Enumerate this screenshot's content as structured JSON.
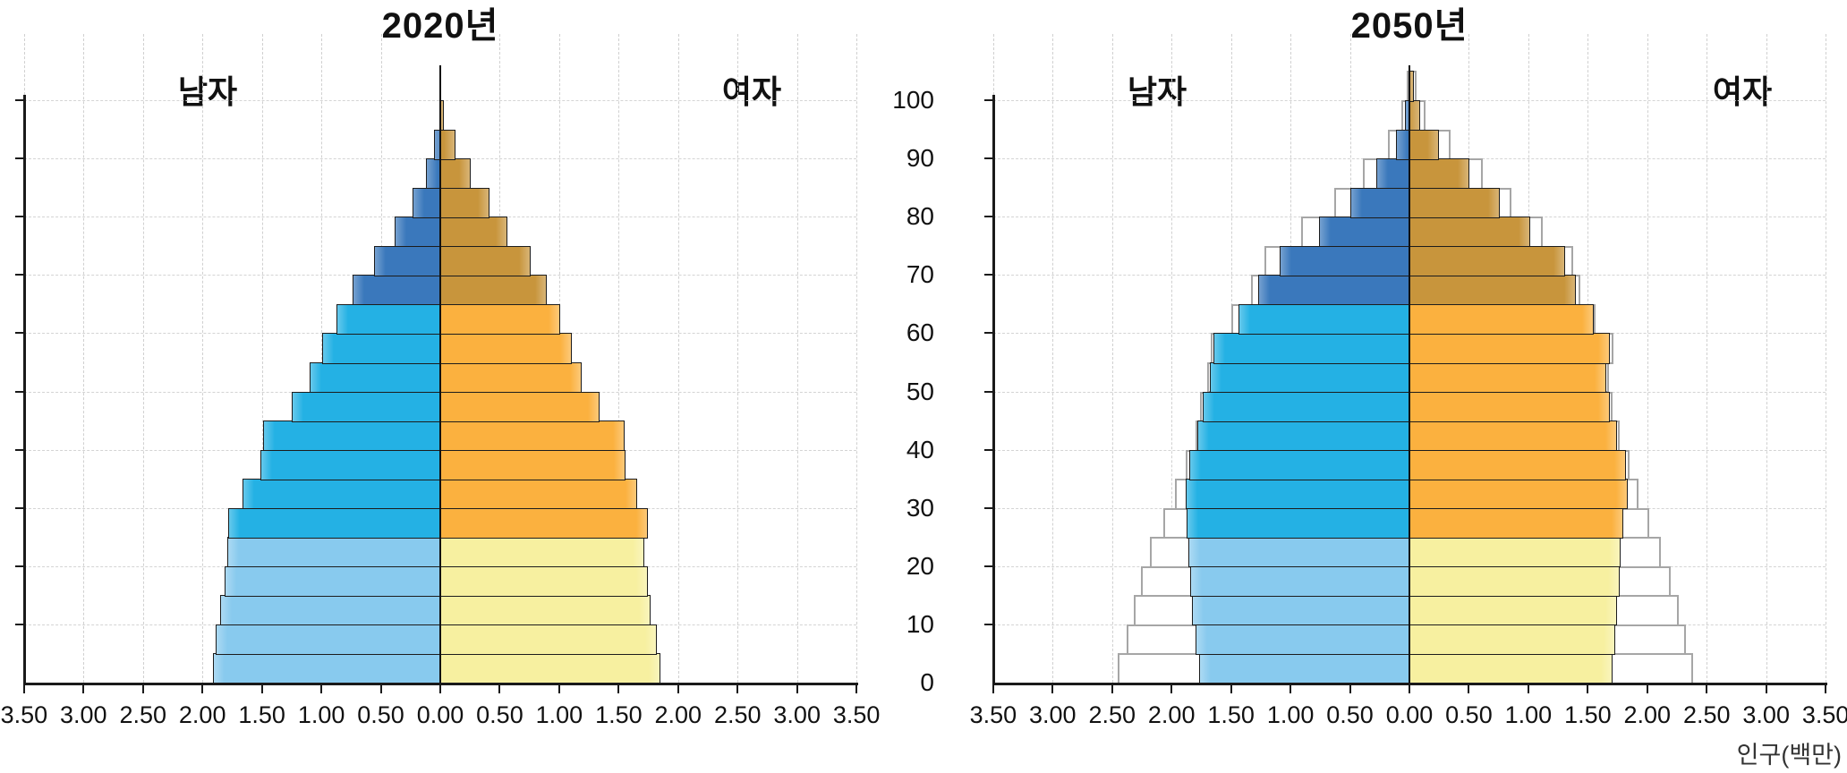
{
  "page": {
    "background": "#ffffff",
    "unit_label": "인구(백만)"
  },
  "axes": {
    "x_tick_labels": [
      "3.50",
      "3.00",
      "2.50",
      "2.00",
      "1.50",
      "1.00",
      "0.50",
      "0.00",
      "0.50",
      "1.00",
      "1.50",
      "2.00",
      "2.50",
      "3.00",
      "3.50"
    ],
    "y_tick_labels": [
      "0",
      "10",
      "20",
      "30",
      "40",
      "50",
      "60",
      "70",
      "80",
      "90",
      "100"
    ],
    "x_axis_unit": "인구(백만)"
  },
  "colors": {
    "male_light": "#88CAEE",
    "male_mid": "#24B1E4",
    "male_dark": "#3A78BC",
    "female_light": "#F7F0A0",
    "female_mid": "#FBB13F",
    "female_dark": "#C8953C",
    "bar_border": "#1c1c1c",
    "outline_border": "#a6a6a6",
    "outline_fill": "#ffffff",
    "grid": "#d0d0d0",
    "axis": "#1a1a1a",
    "background": "#ffffff"
  },
  "chart_data": [
    {
      "type": "bar",
      "subtype": "population-pyramid",
      "title": "2020년",
      "male_label": "남자",
      "female_label": "여자",
      "xlabel": "인구(백만)",
      "ylabel": "",
      "xlim": [
        -3.5,
        3.5
      ],
      "ylim": [
        0,
        105
      ],
      "grid": true,
      "x_tick_step": 0.5,
      "y_tick_step_years": 10,
      "categories": [
        "0-4",
        "5-9",
        "10-14",
        "15-19",
        "20-24",
        "25-29",
        "30-34",
        "35-39",
        "40-44",
        "45-49",
        "50-54",
        "55-59",
        "60-64",
        "65-69",
        "70-74",
        "75-79",
        "80-84",
        "85-89",
        "90-94",
        "95-99",
        "100+"
      ],
      "age_color_groups": {
        "light_ages": "0-24",
        "mid_ages": "25-64",
        "dark_ages": "65+"
      },
      "series": [
        {
          "name": "남자",
          "side": "left",
          "values": [
            1.91,
            1.89,
            1.85,
            1.81,
            1.79,
            1.78,
            1.66,
            1.51,
            1.49,
            1.25,
            1.1,
            0.99,
            0.87,
            0.74,
            0.56,
            0.38,
            0.23,
            0.12,
            0.05,
            0.01,
            0.0
          ]
        },
        {
          "name": "여자",
          "side": "right",
          "values": [
            1.84,
            1.81,
            1.76,
            1.74,
            1.71,
            1.74,
            1.65,
            1.55,
            1.54,
            1.33,
            1.18,
            1.1,
            1.0,
            0.89,
            0.75,
            0.56,
            0.41,
            0.25,
            0.12,
            0.02,
            0.0
          ]
        }
      ]
    },
    {
      "type": "bar",
      "subtype": "population-pyramid",
      "title": "2050년",
      "male_label": "남자",
      "female_label": "여자",
      "xlabel": "인구(백만)",
      "ylabel": "",
      "xlim": [
        -3.5,
        3.5
      ],
      "ylim": [
        0,
        105
      ],
      "grid": true,
      "x_tick_step": 0.5,
      "y_tick_step_years": 10,
      "categories": [
        "0-4",
        "5-9",
        "10-14",
        "15-19",
        "20-24",
        "25-29",
        "30-34",
        "35-39",
        "40-44",
        "45-49",
        "50-54",
        "55-59",
        "60-64",
        "65-69",
        "70-74",
        "75-79",
        "80-84",
        "85-89",
        "90-94",
        "95-99",
        "100+"
      ],
      "age_color_groups": {
        "light_ages": "0-24",
        "mid_ages": "25-64",
        "dark_ages": "65+"
      },
      "series": [
        {
          "name": "남자",
          "side": "left",
          "values": [
            1.77,
            1.8,
            1.83,
            1.84,
            1.86,
            1.87,
            1.88,
            1.85,
            1.78,
            1.74,
            1.68,
            1.65,
            1.44,
            1.27,
            1.09,
            0.76,
            0.5,
            0.28,
            0.11,
            0.04,
            0.01
          ]
        },
        {
          "name": "여자",
          "side": "right",
          "values": [
            1.7,
            1.72,
            1.74,
            1.76,
            1.77,
            1.79,
            1.83,
            1.81,
            1.74,
            1.68,
            1.65,
            1.68,
            1.54,
            1.39,
            1.3,
            1.01,
            0.75,
            0.5,
            0.24,
            0.08,
            0.03
          ]
        },
        {
          "name": "남자 외곽선(비교 윤곽)",
          "side": "left",
          "style": "outline",
          "values": [
            2.45,
            2.38,
            2.32,
            2.26,
            2.18,
            2.07,
            1.97,
            1.88,
            1.8,
            1.76,
            1.7,
            1.67,
            1.5,
            1.33,
            1.22,
            0.91,
            0.63,
            0.39,
            0.18,
            0.07,
            0.02
          ]
        },
        {
          "name": "여자 외곽선(비교 윤곽)",
          "side": "right",
          "style": "outline",
          "values": [
            2.38,
            2.32,
            2.26,
            2.19,
            2.11,
            2.01,
            1.92,
            1.84,
            1.76,
            1.7,
            1.67,
            1.71,
            1.56,
            1.43,
            1.37,
            1.11,
            0.85,
            0.61,
            0.34,
            0.13,
            0.05
          ]
        }
      ]
    }
  ]
}
